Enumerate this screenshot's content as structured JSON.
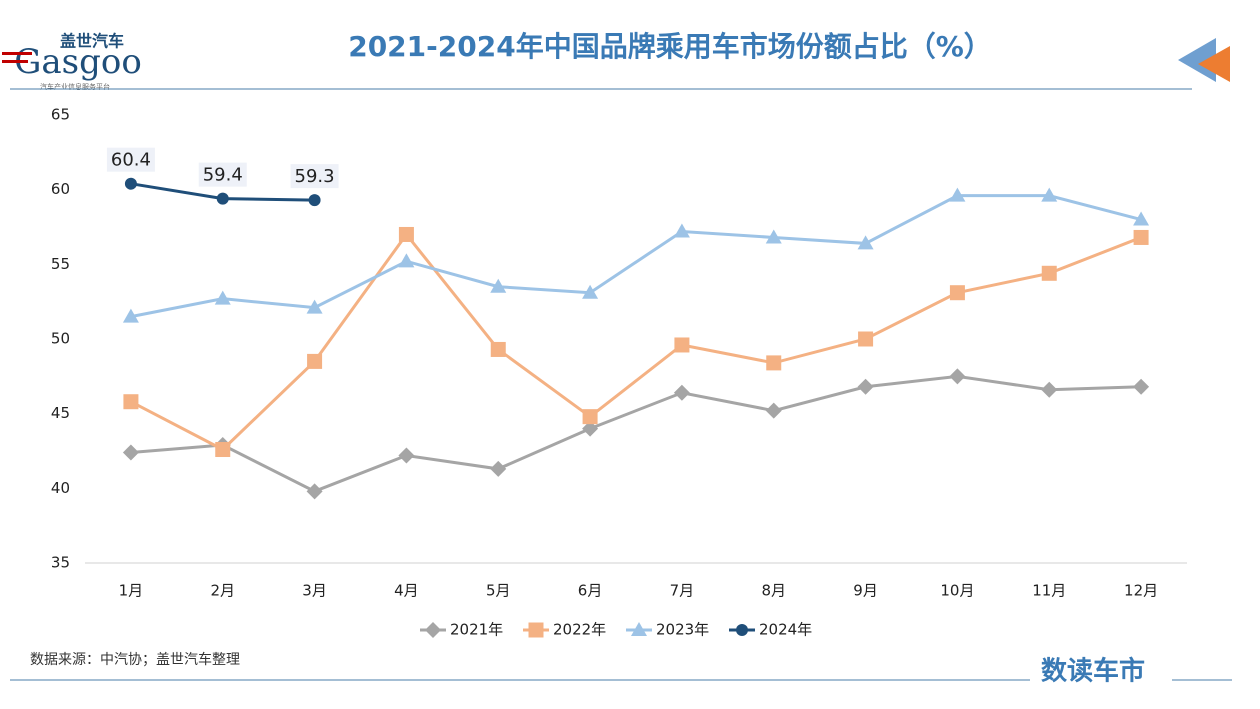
{
  "logo": {
    "cn": "盖世汽车",
    "en": "Gasgoo",
    "tagline": "汽车产业信息服务平台"
  },
  "footer": {
    "source": "数据来源：中汽协；盖世汽车整理",
    "brand": "数读车市"
  },
  "chart_data": {
    "type": "line",
    "title": "2021-2024年中国品牌乘用车市场份额占比（%）",
    "categories": [
      "1月",
      "2月",
      "3月",
      "4月",
      "5月",
      "6月",
      "7月",
      "8月",
      "9月",
      "10月",
      "11月",
      "12月"
    ],
    "series": [
      {
        "name": "2021年",
        "color": "#a5a5a5",
        "marker": "diamond",
        "values": [
          42.4,
          42.9,
          39.8,
          42.2,
          41.3,
          44.0,
          46.4,
          45.2,
          46.8,
          47.5,
          46.6,
          46.8
        ]
      },
      {
        "name": "2022年",
        "color": "#f4b183",
        "marker": "square",
        "values": [
          45.8,
          42.6,
          48.5,
          57.0,
          49.3,
          44.8,
          49.6,
          48.4,
          50.0,
          53.1,
          54.4,
          56.8
        ]
      },
      {
        "name": "2023年",
        "color": "#9dc3e6",
        "marker": "triangle",
        "values": [
          51.5,
          52.7,
          52.1,
          55.2,
          53.5,
          53.1,
          57.2,
          56.8,
          56.4,
          59.6,
          59.6,
          58.0
        ]
      },
      {
        "name": "2024年",
        "color": "#1f4e79",
        "marker": "circle",
        "data_labels": true,
        "values": [
          60.4,
          59.4,
          59.3,
          null,
          null,
          null,
          null,
          null,
          null,
          null,
          null,
          null
        ]
      }
    ],
    "ylim": [
      35,
      65
    ],
    "yticks": [
      35,
      40,
      45,
      50,
      55,
      60,
      65
    ],
    "grid": false,
    "legend": "bottom"
  }
}
